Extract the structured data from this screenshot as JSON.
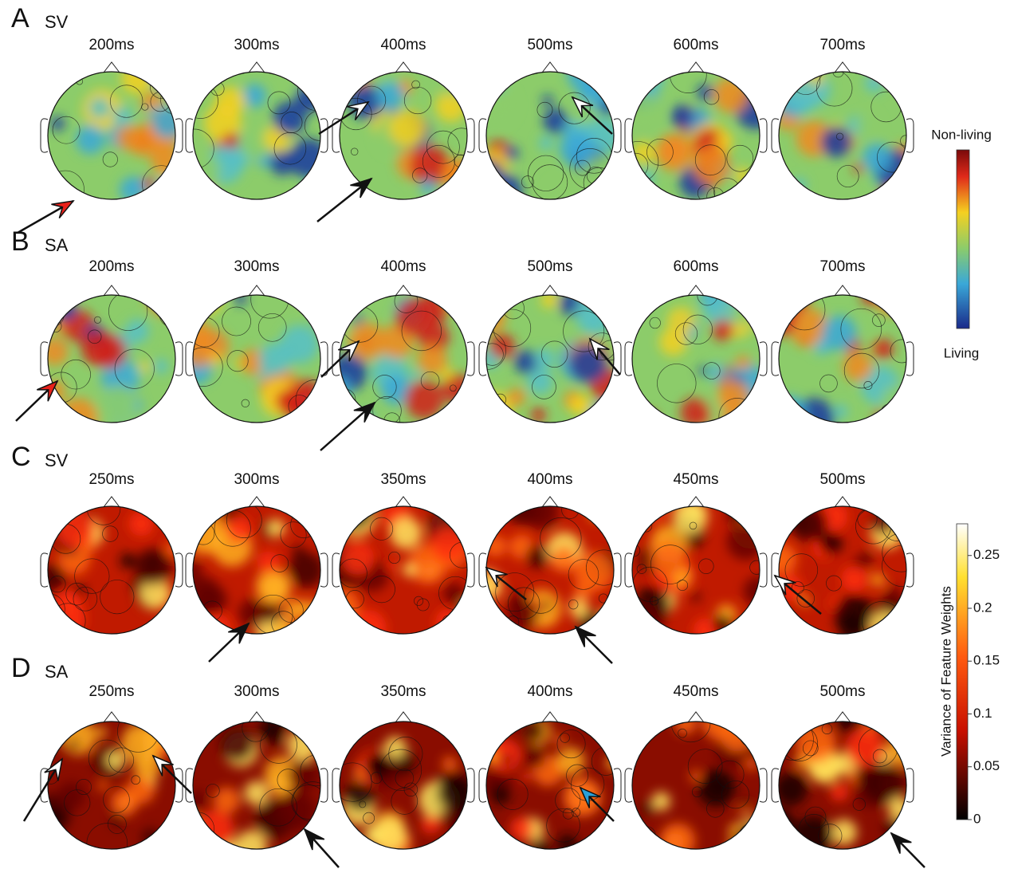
{
  "panels": [
    {
      "letter": "A",
      "condition": "SV",
      "times": [
        "200ms",
        "300ms",
        "400ms",
        "500ms",
        "600ms",
        "700ms"
      ]
    },
    {
      "letter": "B",
      "condition": "SA",
      "times": [
        "200ms",
        "300ms",
        "400ms",
        "500ms",
        "600ms",
        "700ms"
      ]
    },
    {
      "letter": "C",
      "condition": "SV",
      "times": [
        "250ms",
        "300ms",
        "350ms",
        "400ms",
        "450ms",
        "500ms"
      ]
    },
    {
      "letter": "D",
      "condition": "SA",
      "times": [
        "250ms",
        "300ms",
        "350ms",
        "400ms",
        "450ms",
        "500ms"
      ]
    }
  ],
  "colorbar_class": {
    "top_label": "Non-living",
    "bottom_label": "Living"
  },
  "colorbar_variance": {
    "label": "Variance of Feature Weights",
    "ylim": [
      0,
      0.28
    ],
    "yticks": [
      0,
      0.05,
      0.1,
      0.15,
      0.2,
      0.25
    ]
  }
}
